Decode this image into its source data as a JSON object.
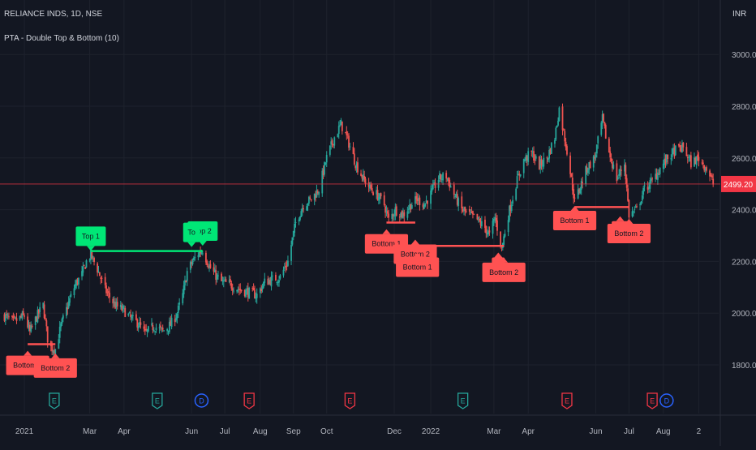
{
  "header": {
    "symbol": "RELIANCE INDS, 1D, NSE",
    "indicator": "PTA - Double Top & Bottom (10)",
    "currency": "INR"
  },
  "price_axis": {
    "labels": [
      "3000.00",
      "2800.00",
      "2600.00",
      "2400.00",
      "2200.00",
      "2000.00",
      "1800.00"
    ]
  },
  "time_axis": {
    "labels": [
      "2021",
      "Mar",
      "Apr",
      "Jun",
      "Jul",
      "Aug",
      "Sep",
      "Oct",
      "Dec",
      "2022",
      "Mar",
      "Apr",
      "Jun",
      "Jul",
      "Aug",
      "2"
    ]
  },
  "last_price": {
    "label": "2499.20",
    "color": "#f23645"
  },
  "colors": {
    "background": "#131722",
    "up": "#26a69a",
    "down": "#ef5350",
    "top_label": "#00e676",
    "bottom_label": "#ff5252",
    "grid": "#1e222d",
    "axis_text": "#b2b5be"
  },
  "event_markers": [
    {
      "letter": "E",
      "kind": "earnings-positive",
      "color": "#26a69a"
    },
    {
      "letter": "E",
      "kind": "earnings-positive",
      "color": "#26a69a"
    },
    {
      "letter": "D",
      "kind": "dividend",
      "color": "#2962ff"
    },
    {
      "letter": "E",
      "kind": "earnings-negative",
      "color": "#f23645"
    },
    {
      "letter": "E",
      "kind": "earnings-negative",
      "color": "#f23645"
    },
    {
      "letter": "E",
      "kind": "earnings-positive",
      "color": "#26a69a"
    },
    {
      "letter": "E",
      "kind": "earnings-negative",
      "color": "#f23645"
    },
    {
      "letter": "E",
      "kind": "earnings-negative",
      "color": "#f23645"
    },
    {
      "letter": "D",
      "kind": "dividend",
      "color": "#2962ff"
    }
  ],
  "chart_data": {
    "type": "candlestick",
    "title": "RELIANCE INDS, 1D, NSE",
    "ylabel": "INR",
    "ylim": [
      1700,
      3000
    ],
    "xlim": [
      "2020-12-10",
      "2022-09-20"
    ],
    "grid": true,
    "price_path": [
      [
        "2020-12-14",
        1990
      ],
      [
        "2020-12-22",
        1965
      ],
      [
        "2021-01-01",
        1990
      ],
      [
        "2021-01-06",
        1925
      ],
      [
        "2021-01-12",
        1985
      ],
      [
        "2021-01-18",
        2030
      ],
      [
        "2021-01-23",
        1870
      ],
      [
        "2021-01-29",
        1860
      ],
      [
        "2021-02-03",
        1950
      ],
      [
        "2021-02-10",
        2040
      ],
      [
        "2021-02-16",
        2110
      ],
      [
        "2021-02-22",
        2150
      ],
      [
        "2021-02-26",
        2200
      ],
      [
        "2021-03-02",
        2225
      ],
      [
        "2021-03-08",
        2170
      ],
      [
        "2021-03-15",
        2090
      ],
      [
        "2021-03-24",
        2030
      ],
      [
        "2021-04-01",
        2010
      ],
      [
        "2021-04-07",
        1980
      ],
      [
        "2021-04-14",
        1960
      ],
      [
        "2021-04-20",
        1920
      ],
      [
        "2021-04-28",
        1950
      ],
      [
        "2021-05-06",
        1930
      ],
      [
        "2021-05-13",
        1955
      ],
      [
        "2021-05-19",
        2000
      ],
      [
        "2021-05-24",
        2070
      ],
      [
        "2021-05-28",
        2160
      ],
      [
        "2021-06-02",
        2200
      ],
      [
        "2021-06-07",
        2230
      ],
      [
        "2021-06-11",
        2245
      ],
      [
        "2021-06-17",
        2180
      ],
      [
        "2021-06-22",
        2150
      ],
      [
        "2021-06-28",
        2120
      ],
      [
        "2021-07-06",
        2110
      ],
      [
        "2021-07-15",
        2090
      ],
      [
        "2021-07-23",
        2080
      ],
      [
        "2021-07-30",
        2070
      ],
      [
        "2021-08-06",
        2120
      ],
      [
        "2021-08-13",
        2130
      ],
      [
        "2021-08-20",
        2140
      ],
      [
        "2021-08-27",
        2200
      ],
      [
        "2021-09-03",
        2350
      ],
      [
        "2021-09-10",
        2420
      ],
      [
        "2021-09-17",
        2440
      ],
      [
        "2021-09-24",
        2480
      ],
      [
        "2021-10-01",
        2600
      ],
      [
        "2021-10-08",
        2680
      ],
      [
        "2021-10-14",
        2730
      ],
      [
        "2021-10-20",
        2670
      ],
      [
        "2021-10-27",
        2580
      ],
      [
        "2021-11-03",
        2520
      ],
      [
        "2021-11-10",
        2480
      ],
      [
        "2021-11-17",
        2450
      ],
      [
        "2021-11-22",
        2420
      ],
      [
        "2021-11-26",
        2360
      ],
      [
        "2021-12-02",
        2400
      ],
      [
        "2021-12-09",
        2380
      ],
      [
        "2021-12-16",
        2420
      ],
      [
        "2021-12-22",
        2440
      ],
      [
        "2021-12-28",
        2420
      ],
      [
        "2022-01-03",
        2460
      ],
      [
        "2022-01-10",
        2520
      ],
      [
        "2022-01-17",
        2530
      ],
      [
        "2022-01-24",
        2460
      ],
      [
        "2022-01-31",
        2400
      ],
      [
        "2022-02-07",
        2380
      ],
      [
        "2022-02-14",
        2360
      ],
      [
        "2022-02-21",
        2330
      ],
      [
        "2022-02-25",
        2300
      ],
      [
        "2022-03-02",
        2370
      ],
      [
        "2022-03-08",
        2250
      ],
      [
        "2022-03-14",
        2380
      ],
      [
        "2022-03-21",
        2500
      ],
      [
        "2022-03-28",
        2590
      ],
      [
        "2022-04-04",
        2620
      ],
      [
        "2022-04-11",
        2570
      ],
      [
        "2022-04-18",
        2600
      ],
      [
        "2022-04-25",
        2680
      ],
      [
        "2022-04-29",
        2790
      ],
      [
        "2022-05-06",
        2630
      ],
      [
        "2022-05-13",
        2430
      ],
      [
        "2022-05-18",
        2490
      ],
      [
        "2022-05-24",
        2560
      ],
      [
        "2022-05-31",
        2600
      ],
      [
        "2022-06-07",
        2750
      ],
      [
        "2022-06-13",
        2620
      ],
      [
        "2022-06-20",
        2520
      ],
      [
        "2022-06-27",
        2580
      ],
      [
        "2022-07-01",
        2380
      ],
      [
        "2022-07-08",
        2400
      ],
      [
        "2022-07-15",
        2480
      ],
      [
        "2022-07-22",
        2510
      ],
      [
        "2022-07-29",
        2560
      ],
      [
        "2022-08-05",
        2600
      ],
      [
        "2022-08-12",
        2630
      ],
      [
        "2022-08-19",
        2640
      ],
      [
        "2022-08-26",
        2580
      ],
      [
        "2022-09-02",
        2600
      ],
      [
        "2022-09-09",
        2560
      ],
      [
        "2022-09-15",
        2500
      ]
    ],
    "last_price": 2499.2,
    "patterns": [
      {
        "label": "Bottom 1",
        "kind": "bottom",
        "date": "2021-01-04",
        "price": 1870
      },
      {
        "label": "Bottom 2",
        "kind": "bottom",
        "date": "2021-01-29",
        "price": 1860
      },
      {
        "label": "Top 1",
        "kind": "top",
        "date": "2021-03-02",
        "price": 2225
      },
      {
        "label": "Top 2",
        "kind": "top",
        "date": "2021-06-11",
        "price": 2245
      },
      {
        "label": "To",
        "kind": "top",
        "date": "2021-06-01",
        "price": 2240
      },
      {
        "label": "Bottom 1",
        "kind": "bottom",
        "date": "2021-11-24",
        "price": 2340
      },
      {
        "label": "Bottom 2",
        "kind": "bottom",
        "date": "2021-12-20",
        "price": 2300
      },
      {
        "label": "Bottom 1",
        "kind": "bottom",
        "date": "2021-12-22",
        "price": 2250
      },
      {
        "label": "B",
        "kind": "bottom",
        "date": "2022-03-05",
        "price": 2250
      },
      {
        "label": "Bottom 2",
        "kind": "bottom",
        "date": "2022-03-10",
        "price": 2230
      },
      {
        "label": "Bottom 1",
        "kind": "bottom",
        "date": "2022-05-13",
        "price": 2430
      },
      {
        "label": "Bo",
        "kind": "bottom",
        "date": "2022-06-23",
        "price": 2390
      },
      {
        "label": "Bottom 2",
        "kind": "bottom",
        "date": "2022-07-01",
        "price": 2380
      }
    ],
    "pattern_lines": [
      {
        "kind": "bottom",
        "from": "2021-01-04",
        "to": "2021-01-29",
        "price": 1880
      },
      {
        "kind": "top",
        "from": "2021-03-02",
        "to": "2021-06-11",
        "price": 2240
      },
      {
        "kind": "bottom",
        "from": "2021-11-24",
        "to": "2021-12-20",
        "price": 2350
      },
      {
        "kind": "bottom",
        "from": "2021-12-22",
        "to": "2022-03-10",
        "price": 2260
      },
      {
        "kind": "bottom",
        "from": "2022-05-13",
        "to": "2022-07-01",
        "price": 2410
      }
    ]
  }
}
